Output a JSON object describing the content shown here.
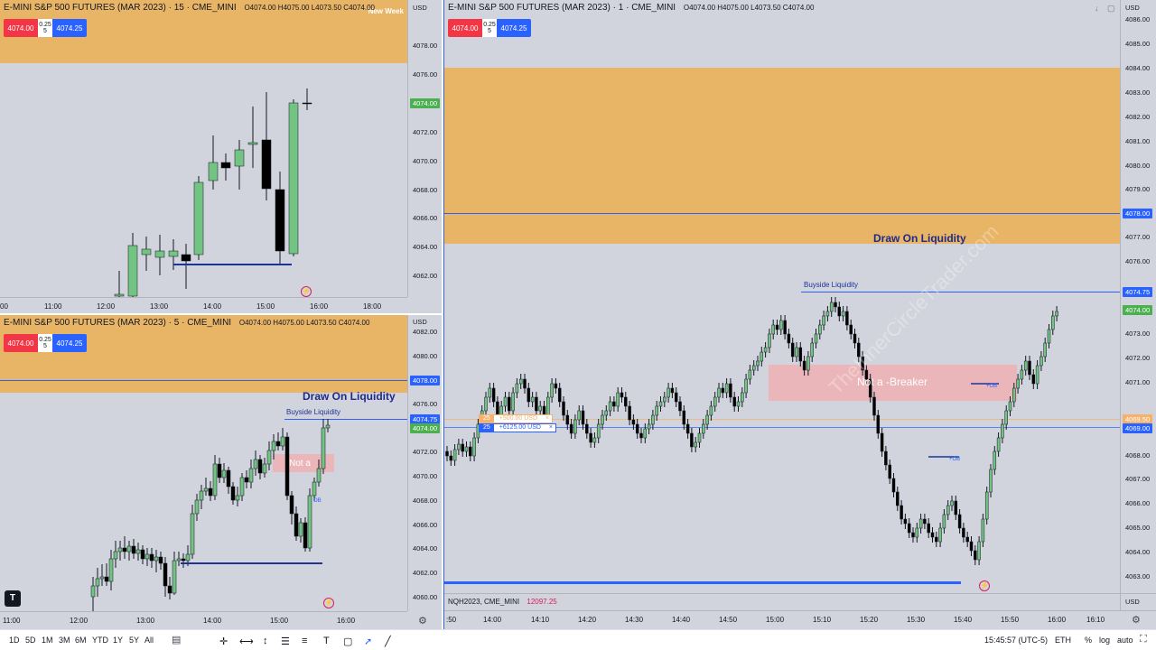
{
  "colors": {
    "bull": "#73c483",
    "bear": "#000000",
    "zone": "#e8b466",
    "blue": "#2962ff",
    "navy": "#1e2a8a",
    "pink": "#f0b0b4"
  },
  "top_left": {
    "symbol": "E-MINI S&P 500 FUTURES (MAR 2023) · 15 · CME_MINI",
    "ohlc": "O4074.00  H4075.00  L4073.50  C4074.00",
    "sell": "4074.00",
    "buy": "4074.25",
    "spread_top": "0.25",
    "spread_bottom": "5",
    "new_week": "New Week",
    "currency": "USD",
    "price_ticks": [
      "4078.00",
      "4076.00",
      "4072.00",
      "4070.00",
      "4068.00",
      "4066.00",
      "4064.00",
      "4062.00"
    ],
    "last_price": "4074.00",
    "time_ticks": [
      "00",
      "11:00",
      "12:00",
      "13:00",
      "14:00",
      "15:00",
      "16:00",
      "18:00"
    ]
  },
  "bottom_left": {
    "symbol": "E-MINI S&P 500 FUTURES (MAR 2023) · 5 · CME_MINI",
    "ohlc": "O4074.00  H4075.00  L4073.50  C4074.00",
    "sell": "4074.00",
    "buy": "4074.25",
    "spread_top": "0.25",
    "spread_bottom": "5",
    "currency": "USD",
    "price_ticks": [
      "4082.00",
      "4080.00",
      "4076.00",
      "4072.00",
      "4070.00",
      "4068.00",
      "4066.00",
      "4064.00",
      "4062.00",
      "4060.00"
    ],
    "tag_4078": "4078.00",
    "tag_4074_75": "4074.75",
    "tag_4074": "4074.00",
    "draw_on_liquidity": "Draw On Liquidity",
    "buyside": "Buyside Liquidity",
    "not_a": "Not a",
    "ob": "OB",
    "time_ticks": [
      "11:00",
      "12:00",
      "13:00",
      "14:00",
      "15:00",
      "16:00"
    ]
  },
  "right": {
    "symbol": "E-MINI S&P 500 FUTURES (MAR 2023) · 1 · CME_MINI",
    "ohlc": "O4074.00  H4075.00  L4073.50  C4074.00",
    "sell": "4074.00",
    "buy": "4074.25",
    "spread_top": "0.25",
    "spread_bottom": "5",
    "currency": "USD",
    "price_ticks": [
      "4086.00",
      "4085.00",
      "4084.00",
      "4083.00",
      "4082.00",
      "4081.00",
      "4080.00",
      "4079.00",
      "4077.00",
      "4076.00",
      "4073.00",
      "4072.00",
      "4071.00",
      "4068.00",
      "4067.00",
      "4066.00",
      "4065.00",
      "4064.00",
      "4063.00"
    ],
    "tag_4078": "4078.00",
    "tag_4074_75": "4074.75",
    "tag_4074": "4074.00",
    "tag_4069_5": "4069.50",
    "tag_4069": "4069.00",
    "draw_on_liquidity": "Draw On Liquidity",
    "buyside": "Buyside Liquidity",
    "not_a_breaker": "Not a -Breaker",
    "ob1": "+OB",
    "ob2": "+OB",
    "order1_qty": "25",
    "order1_pl": "+500.00 USD",
    "order2_qty": "25",
    "order2_pl": "+6125.00 USD",
    "close_x": "×",
    "watermark": "TheInnerCircleTrader.com",
    "sub_symbol": "NQH2023, CME_MINI",
    "sub_value": "12097.25",
    "sub_currency": "USD",
    "time_ticks": [
      ":50",
      "14:00",
      "14:10",
      "14:20",
      "14:30",
      "14:40",
      "14:50",
      "15:00",
      "15:10",
      "15:20",
      "15:30",
      "15:40",
      "15:50",
      "16:00",
      "16:10"
    ]
  },
  "bottom_bar": {
    "ranges": [
      "1D",
      "5D",
      "1M",
      "3M",
      "6M",
      "YTD",
      "1Y",
      "5Y",
      "All"
    ],
    "clock": "15:45:57 (UTC-5)",
    "session": "ETH",
    "pct": "%",
    "log": "log",
    "auto": "auto"
  }
}
